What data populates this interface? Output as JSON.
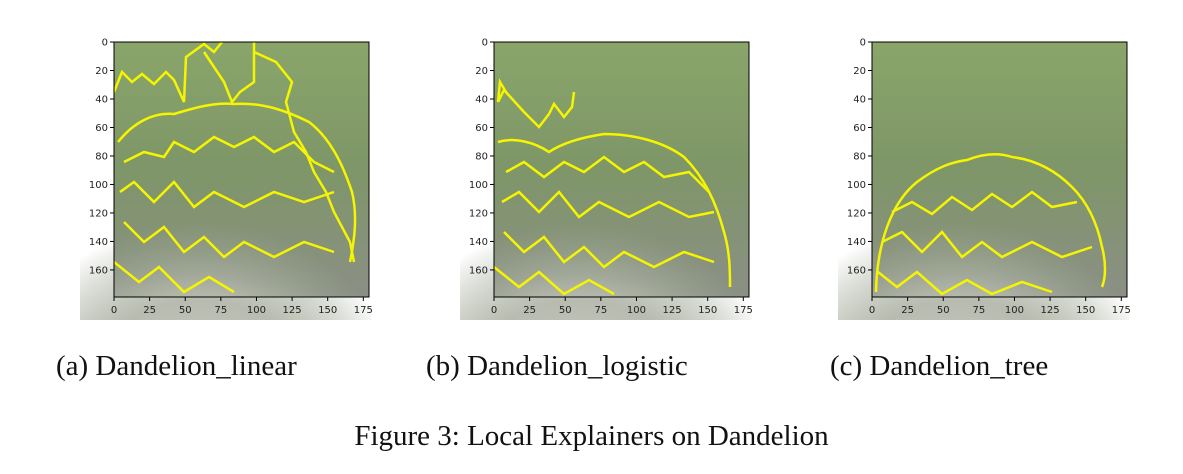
{
  "figure": {
    "caption": "Figure 3: Local Explainers on Dandelion"
  },
  "panels": [
    {
      "caption": "(a) Dandelion_linear",
      "image": "dandelion photo with yellow superpixel boundary overlay covering flower and background"
    },
    {
      "caption": "(b) Dandelion_logistic",
      "image": "dandelion photo with yellow superpixel boundary overlay covering flower and upper-left leaf"
    },
    {
      "caption": "(c) Dandelion_tree",
      "image": "dandelion photo with yellow superpixel boundary overlay covering flower only"
    }
  ],
  "axes": {
    "x_ticks": [
      "0",
      "25",
      "50",
      "75",
      "100",
      "125",
      "150",
      "175"
    ],
    "y_ticks": [
      "0",
      "20",
      "40",
      "60",
      "80",
      "100",
      "120",
      "140",
      "160"
    ],
    "x_values": [
      0,
      25,
      50,
      75,
      100,
      125,
      150,
      175
    ],
    "y_values": [
      0,
      20,
      40,
      60,
      80,
      100,
      120,
      140,
      160
    ],
    "xlim": [
      0,
      179
    ],
    "ylim": [
      179,
      0
    ]
  },
  "colors": {
    "overlay": "#f5f500",
    "background_green": "#7a9a5e",
    "flower_white": "#d8d8d2"
  }
}
